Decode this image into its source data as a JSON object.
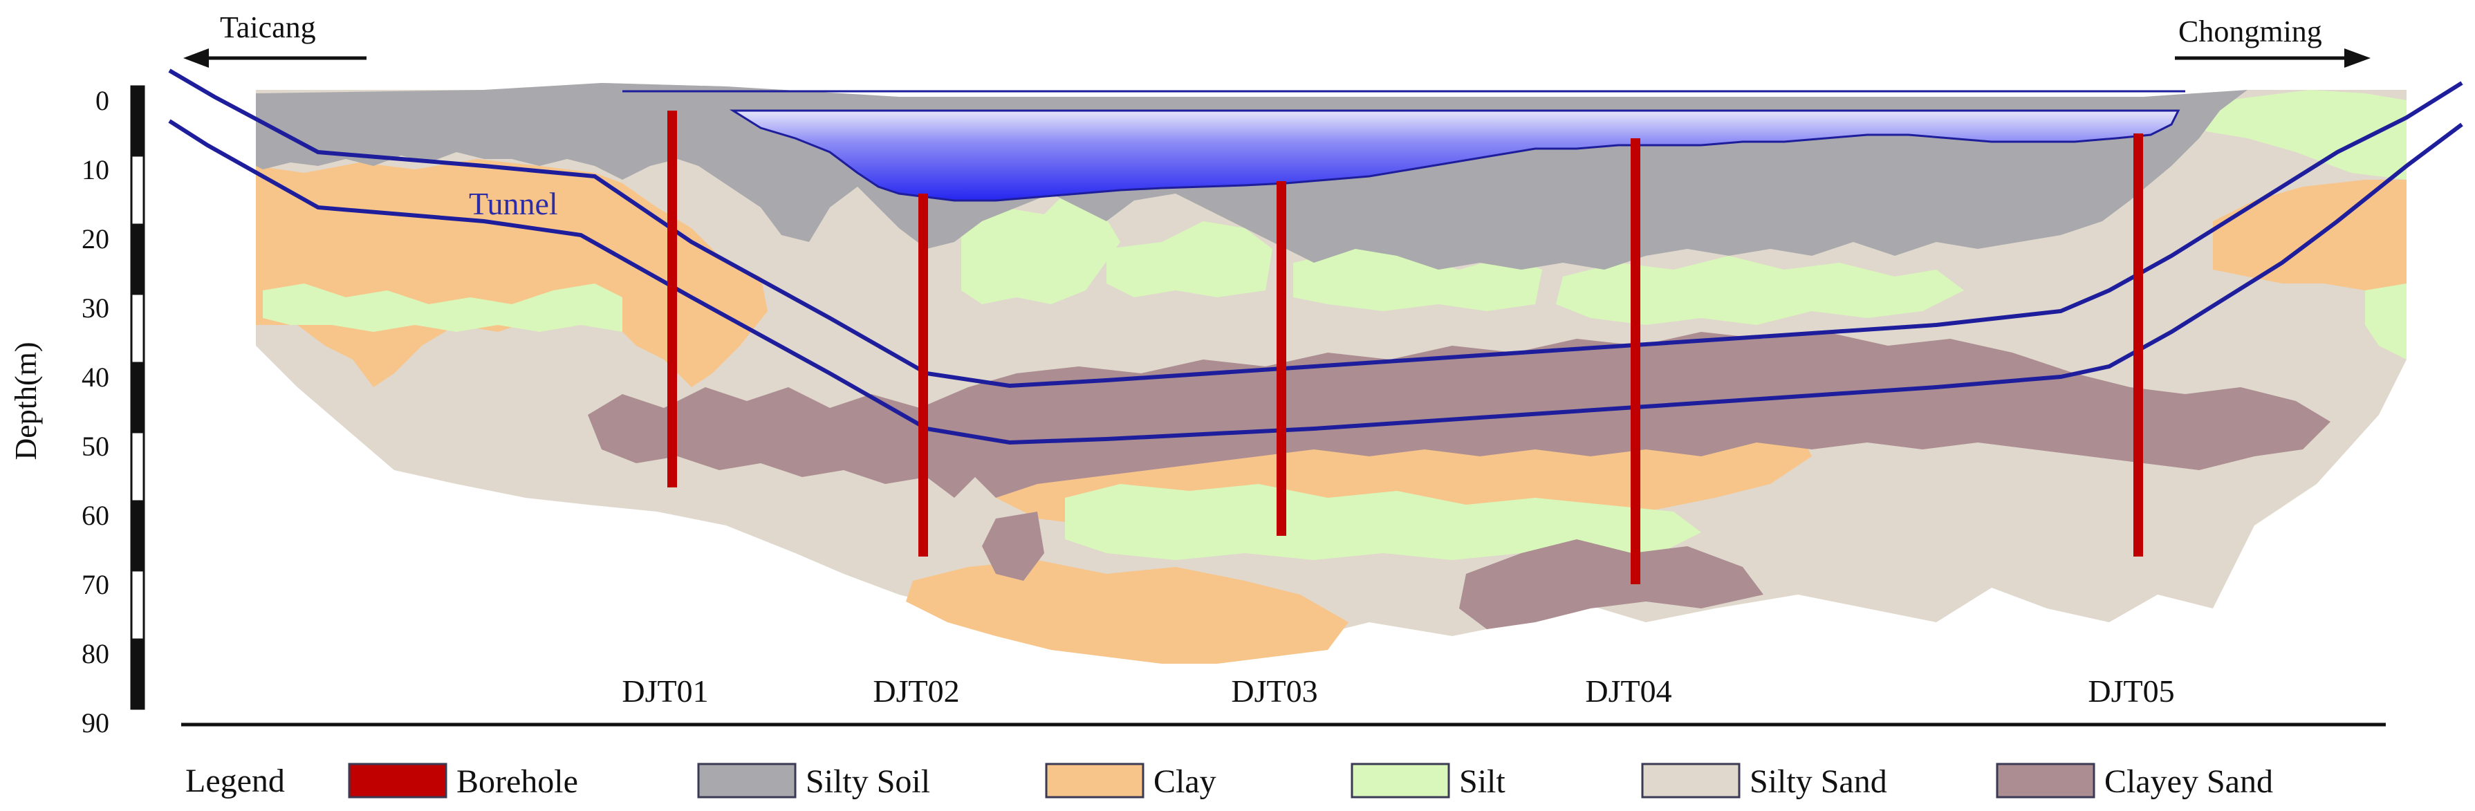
{
  "figure": {
    "direction_left": "Taicang",
    "direction_right": "Chongming",
    "depth_axis": {
      "title": "Depth(m)",
      "ticks": [
        "0",
        "10",
        "20",
        "30",
        "40",
        "50",
        "60",
        "70",
        "80",
        "90"
      ]
    },
    "tunnel_label": "Tunnel",
    "boreholes": [
      {
        "name": "DJT01",
        "depth_m": 56
      },
      {
        "name": "DJT02",
        "depth_m": 66
      },
      {
        "name": "DJT03",
        "depth_m": 63
      },
      {
        "name": "DJT04",
        "depth_m": 70
      },
      {
        "name": "DJT05",
        "depth_m": 66
      }
    ],
    "legend": {
      "title": "Legend",
      "items": [
        {
          "label": "Borehole",
          "color": "#c00000"
        },
        {
          "label": "Silty Soil",
          "color": "#a9a9ad"
        },
        {
          "label": "Clay",
          "color": "#f7c58a"
        },
        {
          "label": "Silt",
          "color": "#d9f7bb"
        },
        {
          "label": "Silty Sand",
          "color": "#e0d8cc"
        },
        {
          "label": "Clayey Sand",
          "color": "#ab8d92"
        }
      ]
    },
    "colors": {
      "water": "#2b2bf0",
      "tunnel_line": "#1e1e9c",
      "borehole": "#c00000"
    }
  }
}
